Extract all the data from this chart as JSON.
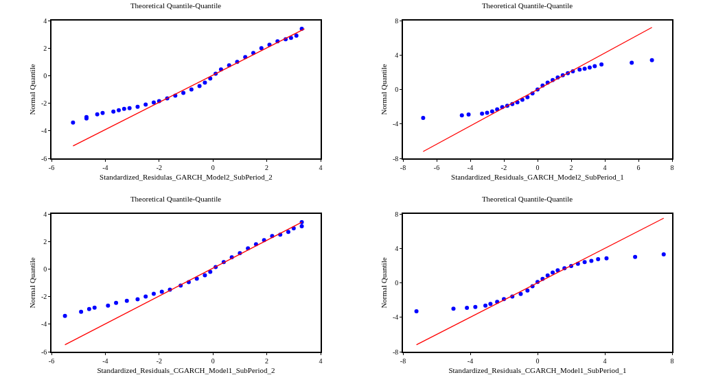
{
  "chart_data": [
    {
      "type": "scatter",
      "title": "Theoretical Quantile-Quantile",
      "xlabel": "Standardized_Residulas_GARCH_Model2_SubPeriod_2",
      "ylabel": "Normal Quantile",
      "xlim": [
        -6,
        4
      ],
      "xticks": [
        -6,
        -4,
        -2,
        0,
        2,
        4
      ],
      "ylim": [
        -6,
        4
      ],
      "yticks": [
        -6,
        -4,
        -2,
        0,
        2,
        4
      ],
      "series": [
        {
          "color": "#0000ff",
          "x": [
            -5.2,
            -4.7,
            -4.7,
            -4.3,
            -4.1,
            -3.7,
            -3.5,
            -3.3,
            -3.1,
            -2.8,
            -2.5,
            -2.2,
            -2.0,
            -1.7,
            -1.4,
            -1.1,
            -0.8,
            -0.5,
            -0.3,
            -0.1,
            0.1,
            0.3,
            0.6,
            0.9,
            1.2,
            1.5,
            1.8,
            2.1,
            2.4,
            2.7,
            2.9,
            3.1,
            3.3
          ],
          "values": [
            -3.4,
            -3.1,
            -3.0,
            -2.8,
            -2.7,
            -2.6,
            -2.5,
            -2.4,
            -2.35,
            -2.25,
            -2.1,
            -1.95,
            -1.85,
            -1.65,
            -1.45,
            -1.25,
            -1.0,
            -0.75,
            -0.5,
            -0.2,
            0.15,
            0.45,
            0.75,
            1.0,
            1.35,
            1.65,
            2.0,
            2.25,
            2.5,
            2.65,
            2.75,
            2.9,
            3.4
          ]
        },
        {
          "type": "line",
          "color": "#ff0000",
          "x": [
            -5.2,
            3.4
          ],
          "values": [
            -5.1,
            3.4
          ]
        }
      ]
    },
    {
      "type": "scatter",
      "title": "Theoretical Quantile-Quantile",
      "xlabel": "Standardized_Residuals_GARCH_Model2_SubPeriod_1",
      "ylabel": "Normal Quantile",
      "xlim": [
        -8,
        8
      ],
      "xticks": [
        -8,
        -6,
        -4,
        -2,
        0,
        2,
        4,
        6,
        8
      ],
      "ylim": [
        -8,
        8
      ],
      "yticks": [
        -8,
        -4,
        0,
        4,
        8
      ],
      "series": [
        {
          "color": "#0000ff",
          "x": [
            -6.8,
            -4.5,
            -4.1,
            -3.3,
            -3.0,
            -2.7,
            -2.4,
            -2.1,
            -1.8,
            -1.5,
            -1.2,
            -0.9,
            -0.6,
            -0.3,
            0,
            0.3,
            0.6,
            0.9,
            1.2,
            1.5,
            1.8,
            2.1,
            2.5,
            2.8,
            3.1,
            3.4,
            3.8,
            5.6,
            6.8
          ],
          "values": [
            -3.3,
            -3.0,
            -2.9,
            -2.8,
            -2.7,
            -2.55,
            -2.3,
            -2.05,
            -1.9,
            -1.7,
            -1.5,
            -1.2,
            -0.9,
            -0.45,
            0,
            0.45,
            0.8,
            1.1,
            1.4,
            1.65,
            1.9,
            2.1,
            2.3,
            2.4,
            2.55,
            2.7,
            2.9,
            3.1,
            3.4
          ]
        },
        {
          "type": "line",
          "color": "#ff0000",
          "x": [
            -6.8,
            6.8
          ],
          "values": [
            -7.2,
            7.2
          ]
        }
      ]
    },
    {
      "type": "scatter",
      "title": "Theoretical Quantile-Quantile",
      "xlabel": "Standardized_Residuals_CGARCH_Model1_SubPeriod_2",
      "ylabel": "Normal Quantile",
      "xlim": [
        -6,
        4
      ],
      "xticks": [
        -6,
        -4,
        -2,
        0,
        2,
        4
      ],
      "ylim": [
        -6,
        4
      ],
      "yticks": [
        -6,
        -4,
        -2,
        0,
        2,
        4
      ],
      "series": [
        {
          "color": "#0000ff",
          "x": [
            -5.5,
            -4.9,
            -4.6,
            -4.4,
            -3.9,
            -3.6,
            -3.2,
            -2.8,
            -2.5,
            -2.2,
            -1.9,
            -1.6,
            -1.2,
            -0.9,
            -0.6,
            -0.3,
            -0.1,
            0.1,
            0.4,
            0.7,
            1.0,
            1.3,
            1.6,
            1.9,
            2.2,
            2.5,
            2.8,
            3.0,
            3.3,
            3.3
          ],
          "values": [
            -3.4,
            -3.1,
            -2.9,
            -2.8,
            -2.65,
            -2.45,
            -2.3,
            -2.2,
            -2.0,
            -1.8,
            -1.65,
            -1.5,
            -1.2,
            -0.95,
            -0.7,
            -0.45,
            -0.2,
            0.15,
            0.5,
            0.85,
            1.15,
            1.5,
            1.8,
            2.1,
            2.4,
            2.5,
            2.7,
            2.95,
            3.1,
            3.4
          ]
        },
        {
          "type": "line",
          "color": "#ff0000",
          "x": [
            -5.5,
            3.3
          ],
          "values": [
            -5.5,
            3.4
          ]
        }
      ]
    },
    {
      "type": "scatter",
      "title": "Theoretical Quantile-Quantile",
      "xlabel": "Standardized_Residuals_CGARCH_Model1_SubPeriod_1",
      "ylabel": "Normal Quantile",
      "xlim": [
        -8,
        8
      ],
      "xticks": [
        -8,
        -4,
        0,
        4,
        8
      ],
      "ylim": [
        -8,
        8
      ],
      "yticks": [
        -8,
        -4,
        0,
        4,
        8
      ],
      "series": [
        {
          "color": "#0000ff",
          "x": [
            -7.2,
            -5.0,
            -4.2,
            -3.7,
            -3.1,
            -2.8,
            -2.4,
            -2.0,
            -1.5,
            -1.0,
            -0.6,
            -0.3,
            0,
            0.3,
            0.6,
            0.9,
            1.2,
            1.6,
            2.0,
            2.4,
            2.8,
            3.2,
            3.6,
            4.1,
            5.8,
            7.5
          ],
          "values": [
            -3.3,
            -3.0,
            -2.9,
            -2.8,
            -2.65,
            -2.45,
            -2.2,
            -1.9,
            -1.6,
            -1.3,
            -0.9,
            -0.4,
            0.1,
            0.45,
            0.85,
            1.2,
            1.45,
            1.7,
            1.95,
            2.2,
            2.4,
            2.55,
            2.75,
            2.85,
            3.0,
            3.3
          ]
        },
        {
          "type": "line",
          "color": "#ff0000",
          "x": [
            -7.2,
            7.5
          ],
          "values": [
            -7.2,
            7.5
          ]
        }
      ]
    }
  ]
}
